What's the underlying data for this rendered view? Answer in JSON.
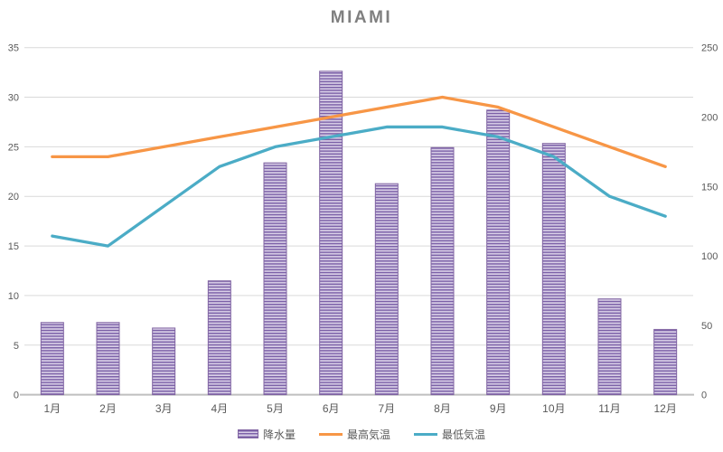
{
  "chart_data": {
    "type": "combo",
    "title": "MIAMI",
    "categories": [
      "1月",
      "2月",
      "3月",
      "4月",
      "5月",
      "6月",
      "7月",
      "8月",
      "9月",
      "10月",
      "11月",
      "12月"
    ],
    "series": [
      {
        "key": "precipitation",
        "name": "降水量",
        "type": "bar",
        "axis": "right",
        "color": "#8064A2",
        "values": [
          52,
          52,
          48,
          82,
          167,
          233,
          152,
          178,
          205,
          181,
          69,
          47
        ]
      },
      {
        "key": "max-temp",
        "name": "最高気温",
        "type": "line",
        "axis": "left",
        "color": "#F79646",
        "values": [
          24,
          24,
          25,
          26,
          27,
          28,
          29,
          30,
          29,
          27,
          25,
          23
        ]
      },
      {
        "key": "min-temp",
        "name": "最低気温",
        "type": "line",
        "axis": "left",
        "color": "#4BACC6",
        "values": [
          16,
          15,
          19,
          23,
          25,
          26,
          27,
          27,
          26,
          24,
          20,
          18
        ]
      }
    ],
    "left_axis": {
      "min": 0,
      "max": 35,
      "step": 5,
      "ticks": [
        "0",
        "5",
        "10",
        "15",
        "20",
        "25",
        "30",
        "35"
      ]
    },
    "right_axis": {
      "min": 0,
      "max": 250,
      "step": 50,
      "ticks": [
        "0",
        "50",
        "100",
        "150",
        "200",
        "250"
      ]
    },
    "grid": "horizontal",
    "legend_position": "bottom",
    "colors": {
      "grid": "#D9D9D9",
      "axis_line": "#BFBFBF",
      "tick_text": "#595959",
      "title_text": "#7F7F7F",
      "bar_stripe_dark": "#7C61A8",
      "bar_stripe_light": "#D9CFE7"
    }
  }
}
